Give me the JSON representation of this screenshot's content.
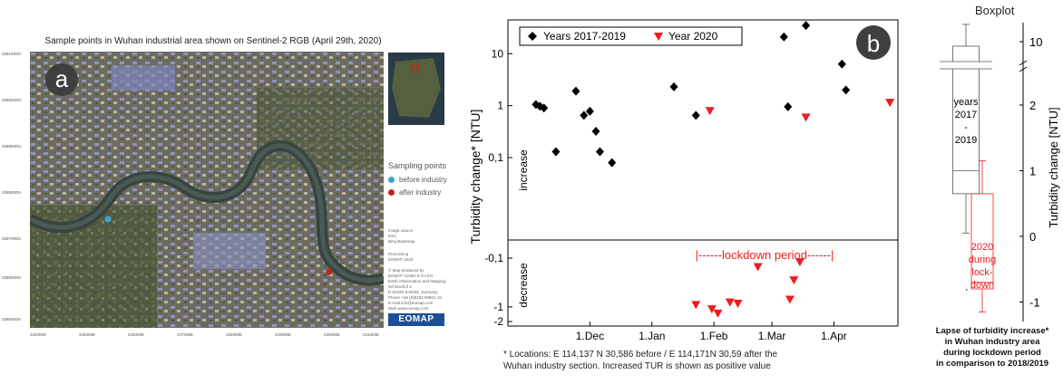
{
  "panel_a": {
    "badge": "a",
    "title": "Sample points in Wuhan industrial area shown on Sentinel-2 RGB (April 29th, 2020)",
    "legend_title": "Sampling points",
    "legend_items": [
      {
        "label": "before industry",
        "color": "#3ba3d9"
      },
      {
        "label": "after industry",
        "color": "#c0261e"
      }
    ],
    "image_source": [
      "Image source",
      "ESA",
      "Bing Basemap"
    ],
    "processing": [
      "Processing",
      "EOMAP 2020"
    ],
    "credits": [
      "© Map produced by",
      "EOMAP GmbH & Co.KG",
      "Earth Observation and Mapping",
      "Schlosshof 4",
      "D 82229 Seefeld, Germany",
      "Phone +49 (0)8152 99861-15",
      "E-mail info@eomap.com",
      "Web www.eomap.com"
    ],
    "logo": "EOMAP",
    "y_ticks": [
      "3391000N",
      "3390000N",
      "3389000N",
      "3388000N",
      "3387000N",
      "3386000N",
      "3385000N"
    ],
    "x_ticks": [
      "224000E",
      "225000E",
      "226000E",
      "227000E",
      "228000E",
      "229000E",
      "230000E",
      "231000E"
    ]
  },
  "panel_b": {
    "badge": "b",
    "legend_series_1": "Years 2017-2019",
    "legend_series_2": "Year 2020",
    "ylabel": "Turbidity change* [NTU]",
    "increase_label": "increase",
    "decrease_label": "decrease",
    "lockdown_label": "|------lockdown period------|",
    "footnote_1": "* Locations: E 114,137 N 30,586 before / E 114,171N 30,59 after the",
    "footnote_2": "Wuhan industry section. Increased TUR is shown as positive value"
  },
  "panel_c": {
    "title": "Boxplot",
    "ylabel": "Turbidity change [NTU]",
    "box1_label": [
      "years",
      "2017",
      "-",
      "2019"
    ],
    "box2_label": [
      "2020",
      "during",
      "lock-",
      "down"
    ],
    "caption": [
      "Lapse of turbidity increase*",
      "in Wuhan industry area",
      "during lockdown period",
      "in comparison to 2018/2019"
    ]
  },
  "chart_data": [
    {
      "type": "scatter",
      "ylabel": "Turbidity change* [NTU]",
      "yscale": "log (upper), log-negative (lower)",
      "x_ticks": [
        "1.Dec",
        "1.Jan",
        "1.Feb",
        "1.Mar",
        "1.Apr"
      ],
      "y_ticks_upper": [
        "10",
        "1",
        "0,1"
      ],
      "y_ticks_lower": [
        "-0,1",
        "-1",
        "-2"
      ],
      "series": [
        {
          "name": "Years 2017-2019",
          "color": "#000000",
          "points": [
            {
              "x": "2019-11-04",
              "y": 1.05
            },
            {
              "x": "2019-11-06",
              "y": 0.97
            },
            {
              "x": "2019-11-08",
              "y": 0.9
            },
            {
              "x": "2019-11-14",
              "y": 0.13
            },
            {
              "x": "2019-11-24",
              "y": 1.9
            },
            {
              "x": "2019-11-28",
              "y": 0.65
            },
            {
              "x": "2019-12-01",
              "y": 0.78
            },
            {
              "x": "2019-12-04",
              "y": 0.32
            },
            {
              "x": "2019-12-06",
              "y": 0.13
            },
            {
              "x": "2019-12-12",
              "y": 0.08
            },
            {
              "x": "2020-01-12",
              "y": 2.3
            },
            {
              "x": "2020-01-23",
              "y": 0.65
            },
            {
              "x": "2020-03-07",
              "y": 21
            },
            {
              "x": "2020-03-09",
              "y": 0.95
            },
            {
              "x": "2020-03-18",
              "y": 35
            },
            {
              "x": "2020-04-05",
              "y": 6.3
            },
            {
              "x": "2020-04-07",
              "y": 2.0
            }
          ]
        },
        {
          "name": "Year 2020",
          "color": "#ee1c1c",
          "points": [
            {
              "x": "2020-01-30",
              "y": 0.8
            },
            {
              "x": "2020-03-18",
              "y": 0.6
            },
            {
              "x": "2020-04-29",
              "y": 1.15
            },
            {
              "x": "2020-01-23",
              "y": -0.9
            },
            {
              "x": "2020-01-31",
              "y": -1.1
            },
            {
              "x": "2020-02-03",
              "y": -1.35
            },
            {
              "x": "2020-02-09",
              "y": -0.8
            },
            {
              "x": "2020-02-13",
              "y": -0.85
            },
            {
              "x": "2020-02-23",
              "y": -0.15
            },
            {
              "x": "2020-03-10",
              "y": -0.7
            },
            {
              "x": "2020-03-12",
              "y": -0.28
            },
            {
              "x": "2020-03-15",
              "y": -0.12
            }
          ]
        }
      ]
    },
    {
      "type": "box",
      "title": "Boxplot",
      "ylabel": "Turbidity change [NTU]",
      "y_ticks": [
        "-1",
        "0",
        "1",
        "2",
        "10"
      ],
      "boxes": [
        {
          "name": "years 2017 - 2019",
          "color": "#555555",
          "min": 0.05,
          "q1": 0.65,
          "median": 1.0,
          "q3": 7.5,
          "max": 30
        },
        {
          "name": "2020 during lock-down",
          "color": "#ee1c1c",
          "min": -1.15,
          "q1": -0.8,
          "median": -0.7,
          "q3": 0.65,
          "max": 1.15
        }
      ]
    }
  ]
}
